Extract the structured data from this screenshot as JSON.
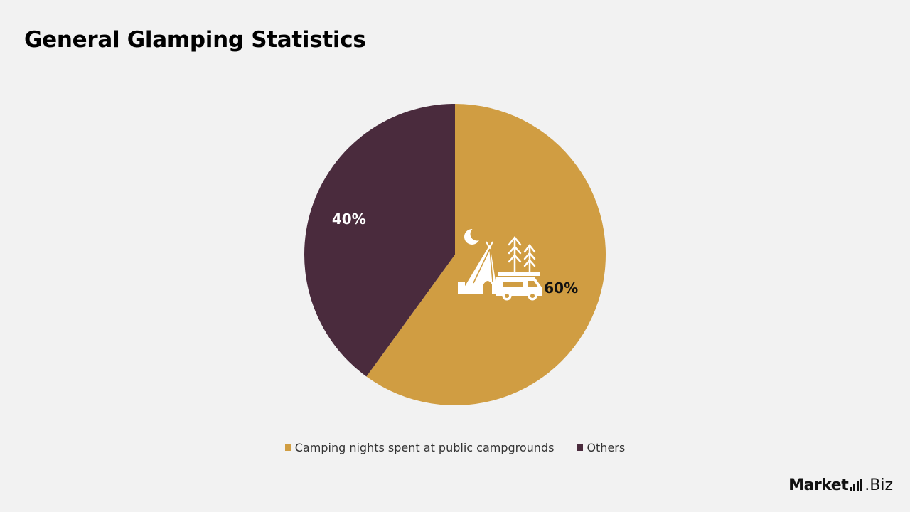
{
  "title": "General Glamping Statistics",
  "chart_data": {
    "type": "pie",
    "labels": [
      "Camping nights spent at public campgrounds",
      "Others"
    ],
    "values": [
      60,
      40
    ],
    "display_labels": [
      "60%",
      "40%"
    ],
    "colors": [
      "#d09d42",
      "#4a2b3d"
    ],
    "label_colors": [
      "#111111",
      "#ffffff"
    ],
    "legend_position": "bottom",
    "center_icon": "camping-icon"
  },
  "logo": {
    "main": "Market",
    "suffix": ".Biz"
  }
}
